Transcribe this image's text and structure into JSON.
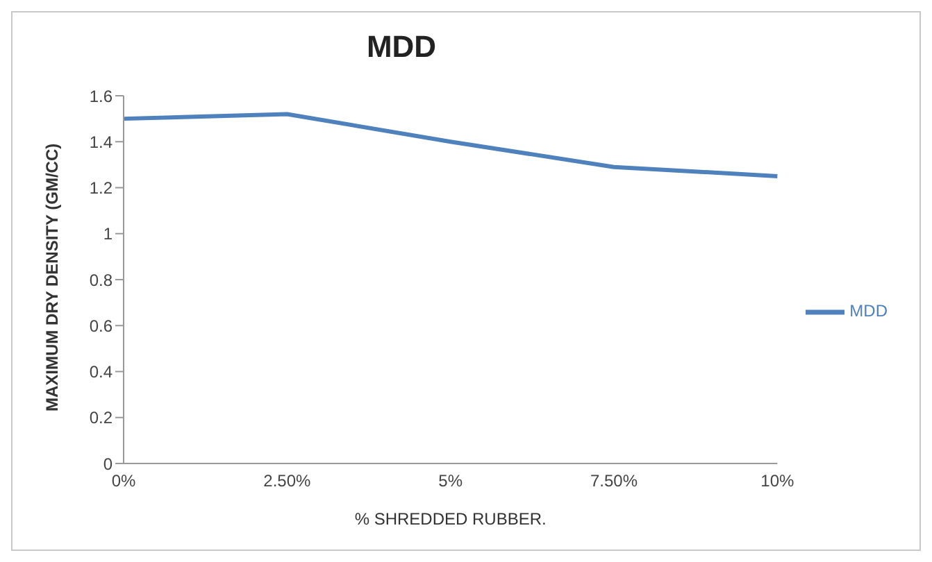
{
  "chart_data": {
    "type": "line",
    "title": "MDD",
    "xlabel": "% SHREDDED RUBBER.",
    "ylabel": "MAXIMUM DRY DENSITY (GM/CC)",
    "categories": [
      "0%",
      "2.50%",
      "5%",
      "7.50%",
      "10%"
    ],
    "series": [
      {
        "name": "MDD",
        "color": "#4f81bd",
        "values": [
          1.5,
          1.52,
          1.4,
          1.29,
          1.25
        ]
      }
    ],
    "ylim": [
      0,
      1.6
    ],
    "yticks": [
      0,
      0.2,
      0.4,
      0.6,
      0.8,
      1,
      1.2,
      1.4,
      1.6
    ],
    "grid": false,
    "legend": "right",
    "marker": "none",
    "line_style": "solid"
  }
}
